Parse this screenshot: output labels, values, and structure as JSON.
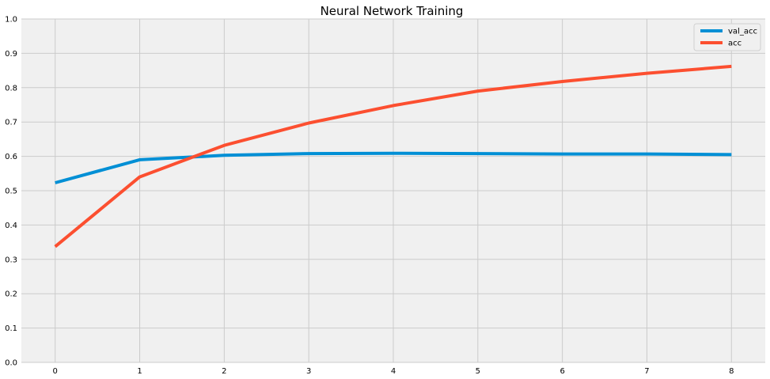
{
  "chart_data": {
    "type": "line",
    "title": "Neural Network Training",
    "xlabel": "",
    "ylabel": "",
    "x": [
      0,
      1,
      2,
      3,
      4,
      5,
      6,
      7,
      8
    ],
    "xlim": [
      -0.4,
      8.4
    ],
    "ylim": [
      0,
      1.0
    ],
    "xticks": [
      "0",
      "1",
      "2",
      "3",
      "4",
      "5",
      "6",
      "7",
      "8"
    ],
    "yticks": [
      "0.0",
      "0.1",
      "0.2",
      "0.3",
      "0.4",
      "0.5",
      "0.6",
      "0.7",
      "0.8",
      "0.9",
      "1.0"
    ],
    "grid": true,
    "legend_position": "top-right",
    "series": [
      {
        "name": "val_acc",
        "color": "#008fd5",
        "values": [
          0.523,
          0.59,
          0.603,
          0.608,
          0.609,
          0.608,
          0.607,
          0.607,
          0.605
        ]
      },
      {
        "name": "acc",
        "color": "#fc4f30",
        "values": [
          0.337,
          0.54,
          0.632,
          0.697,
          0.748,
          0.79,
          0.818,
          0.842,
          0.862
        ]
      }
    ]
  }
}
